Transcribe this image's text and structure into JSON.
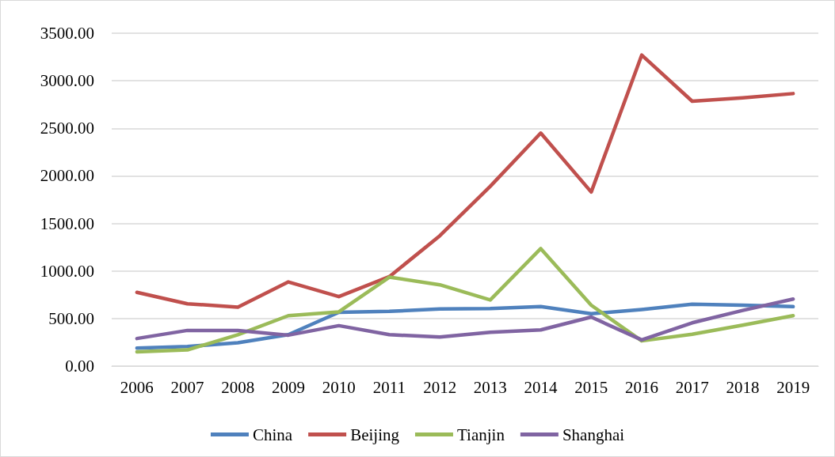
{
  "chart_data": {
    "type": "line",
    "categories": [
      "2006",
      "2007",
      "2008",
      "2009",
      "2010",
      "2011",
      "2012",
      "2013",
      "2014",
      "2015",
      "2016",
      "2017",
      "2018",
      "2019"
    ],
    "series": [
      {
        "name": "China",
        "color": "#4f81bd",
        "values": [
          190,
          205,
          245,
          330,
          565,
          575,
          600,
          605,
          625,
          550,
          595,
          650,
          640,
          625
        ]
      },
      {
        "name": "Beijing",
        "color": "#c0504d",
        "values": [
          775,
          655,
          620,
          885,
          730,
          940,
          1370,
          1890,
          2450,
          1830,
          3270,
          2785,
          2820,
          2865
        ]
      },
      {
        "name": "Tianjin",
        "color": "#9bbb59",
        "values": [
          150,
          170,
          330,
          530,
          570,
          935,
          855,
          695,
          1235,
          640,
          265,
          335,
          430,
          530
        ]
      },
      {
        "name": "Shanghai",
        "color": "#8064a2",
        "values": [
          290,
          375,
          375,
          325,
          425,
          330,
          305,
          355,
          380,
          515,
          275,
          455,
          585,
          705
        ]
      }
    ],
    "ylim": [
      0,
      3500
    ],
    "yticks": [
      {
        "value": 0,
        "label": "0.00"
      },
      {
        "value": 500,
        "label": "500.00"
      },
      {
        "value": 1000,
        "label": "1000.00"
      },
      {
        "value": 1500,
        "label": "1500.00"
      },
      {
        "value": 2000,
        "label": "2000.00"
      },
      {
        "value": 2500,
        "label": "2500.00"
      },
      {
        "value": 3000,
        "label": "3000.00"
      },
      {
        "value": 3500,
        "label": "3500.00"
      }
    ],
    "grid": "y",
    "legend": "bottom",
    "marker": "none",
    "line_style": "solid"
  }
}
